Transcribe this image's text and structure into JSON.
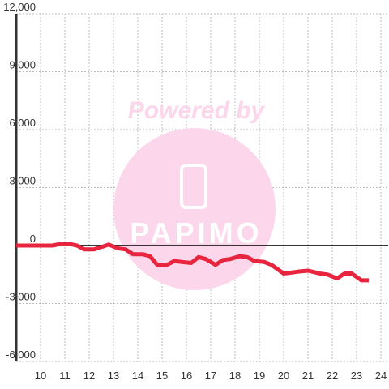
{
  "chart_data": {
    "type": "line",
    "watermark": {
      "text": "Powered by",
      "logo": "PAPIMO"
    },
    "x": [
      9,
      10,
      10.5,
      10.8,
      11.2,
      11.5,
      11.8,
      12.2,
      12.5,
      12.8,
      13.2,
      13.5,
      13.8,
      14.2,
      14.5,
      14.8,
      15.2,
      15.5,
      15.8,
      16.2,
      16.5,
      16.8,
      17.2,
      17.5,
      17.8,
      18.2,
      18.5,
      18.8,
      19.2,
      19.5,
      20,
      20.3,
      20.6,
      21,
      21.5,
      21.8,
      22.2,
      22.5,
      22.8,
      23.2,
      23.5
    ],
    "series": [
      {
        "color": "#e8243f",
        "values": [
          0,
          0,
          0,
          80,
          80,
          0,
          -200,
          -200,
          -80,
          50,
          -150,
          -200,
          -450,
          -450,
          -550,
          -1000,
          -1000,
          -800,
          -850,
          -900,
          -600,
          -700,
          -1000,
          -750,
          -700,
          -550,
          -600,
          -800,
          -850,
          -1000,
          -1450,
          -1400,
          -1350,
          -1300,
          -1450,
          -1500,
          -1700,
          -1450,
          -1450,
          -1800,
          -1800
        ]
      }
    ],
    "xlim": [
      9,
      24.3
    ],
    "xticks": [
      10,
      11,
      12,
      13,
      14,
      15,
      16,
      17,
      18,
      19,
      20,
      21,
      22,
      23,
      24
    ],
    "ylim": [
      -6000,
      12000
    ],
    "yticks": [
      {
        "value": -6000,
        "label": "-6,000"
      },
      {
        "value": -3000,
        "label": "-3,000"
      },
      0,
      {
        "value": 3000,
        "label": "3,000"
      },
      {
        "value": 6000,
        "label": "6,000"
      },
      {
        "value": 9000,
        "label": "9,000"
      },
      {
        "value": 12000,
        "label": "12,000"
      }
    ],
    "grid": true
  }
}
